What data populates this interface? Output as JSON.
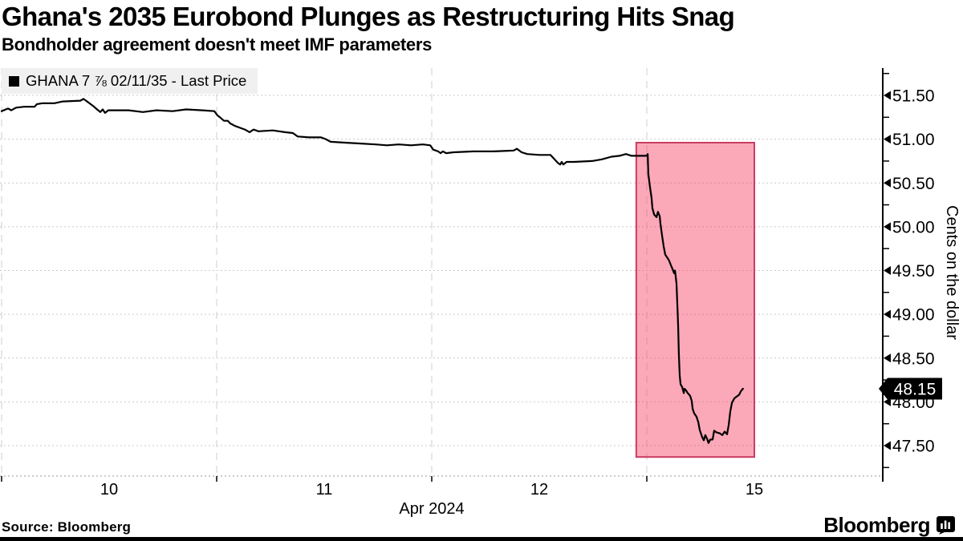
{
  "header": {
    "title": "Ghana's 2035 Eurobond Plunges as Restructuring Hits Snag",
    "subtitle": "Bondholder agreement doesn't meet IMF parameters"
  },
  "legend": {
    "label": "GHANA 7 ⅞ 02/11/35 - Last Price"
  },
  "footer": {
    "source": "Source: Bloomberg",
    "brand": "Bloomberg"
  },
  "colors": {
    "line": "#000000",
    "grid": "#c9c9c9",
    "highlight_fill": "#F64669",
    "highlight_stroke": "#C83D62",
    "legend_bg": "#f0f0f0",
    "badge_bg": "#000000",
    "badge_text": "#ffffff"
  },
  "chart_data": {
    "type": "line",
    "title": "Ghana's 2035 Eurobond Plunges as Restructuring Hits Snag",
    "subtitle": "Bondholder agreement doesn't meet IMF parameters",
    "xlabel": "Apr 2024",
    "ylabel": "Cents on the dollar",
    "ylim": [
      47.15,
      51.82
    ],
    "grid": true,
    "legend_position": "top-left",
    "y_ticks": [
      {
        "value": 51.5,
        "label": "51.50"
      },
      {
        "value": 51.0,
        "label": "51.00"
      },
      {
        "value": 50.5,
        "label": "50.50"
      },
      {
        "value": 50.0,
        "label": "50.00"
      },
      {
        "value": 49.5,
        "label": "49.50"
      },
      {
        "value": 49.0,
        "label": "49.00"
      },
      {
        "value": 48.5,
        "label": "48.50"
      },
      {
        "value": 48.0,
        "label": "48.00"
      },
      {
        "value": 47.5,
        "label": "47.50"
      }
    ],
    "y_minor_step": 0.25,
    "x_gridlines": [
      0,
      1,
      2,
      3
    ],
    "x_max_t": 4.112,
    "x_labels": [
      {
        "t": 0.5,
        "label": "10"
      },
      {
        "t": 1.5,
        "label": "11"
      },
      {
        "t": 2.5,
        "label": "12"
      },
      {
        "t": 3.5,
        "label": "15"
      }
    ],
    "last_price": {
      "value": 48.15,
      "label": "48.15"
    },
    "highlight_region": {
      "t0": 2.951,
      "t1": 3.5,
      "v_low": 47.37,
      "v_high": 50.96
    },
    "series": [
      {
        "name": "GHANA 7 ⅞ 02/11/35 - Last Price",
        "color": "#000000",
        "points": [
          [
            0.0,
            51.32
          ],
          [
            0.03,
            51.35
          ],
          [
            0.045,
            51.33
          ],
          [
            0.067,
            51.36
          ],
          [
            0.104,
            51.37
          ],
          [
            0.153,
            51.37
          ],
          [
            0.164,
            51.4
          ],
          [
            0.19,
            51.41
          ],
          [
            0.246,
            51.41
          ],
          [
            0.284,
            51.43
          ],
          [
            0.366,
            51.44
          ],
          [
            0.381,
            51.46
          ],
          [
            0.392,
            51.44
          ],
          [
            0.403,
            51.42
          ],
          [
            0.425,
            51.38
          ],
          [
            0.444,
            51.34
          ],
          [
            0.459,
            51.31
          ],
          [
            0.47,
            51.34
          ],
          [
            0.481,
            51.3
          ],
          [
            0.496,
            51.33
          ],
          [
            0.59,
            51.33
          ],
          [
            0.657,
            51.31
          ],
          [
            0.72,
            51.33
          ],
          [
            0.795,
            51.32
          ],
          [
            0.858,
            51.34
          ],
          [
            0.933,
            51.33
          ],
          [
            0.989,
            51.32
          ],
          [
            1.004,
            51.27
          ],
          [
            1.015,
            51.25
          ],
          [
            1.034,
            51.21
          ],
          [
            1.052,
            51.21
          ],
          [
            1.063,
            51.18
          ],
          [
            1.086,
            51.15
          ],
          [
            1.108,
            51.13
          ],
          [
            1.131,
            51.11
          ],
          [
            1.153,
            51.08
          ],
          [
            1.172,
            51.11
          ],
          [
            1.194,
            51.09
          ],
          [
            1.261,
            51.1
          ],
          [
            1.317,
            51.08
          ],
          [
            1.354,
            51.07
          ],
          [
            1.377,
            51.03
          ],
          [
            1.429,
            51.02
          ],
          [
            1.485,
            51.02
          ],
          [
            1.507,
            51.0
          ],
          [
            1.53,
            50.97
          ],
          [
            1.597,
            50.96
          ],
          [
            1.672,
            50.95
          ],
          [
            1.739,
            50.94
          ],
          [
            1.791,
            50.93
          ],
          [
            1.847,
            50.94
          ],
          [
            1.903,
            50.93
          ],
          [
            1.959,
            50.94
          ],
          [
            1.993,
            50.93
          ],
          [
            2.007,
            50.88
          ],
          [
            2.03,
            50.86
          ],
          [
            2.041,
            50.84
          ],
          [
            2.052,
            50.86
          ],
          [
            2.067,
            50.84
          ],
          [
            2.101,
            50.85
          ],
          [
            2.194,
            50.86
          ],
          [
            2.287,
            50.86
          ],
          [
            2.381,
            50.87
          ],
          [
            2.396,
            50.89
          ],
          [
            2.418,
            50.85
          ],
          [
            2.444,
            50.83
          ],
          [
            2.5,
            50.82
          ],
          [
            2.552,
            50.82
          ],
          [
            2.571,
            50.77
          ],
          [
            2.586,
            50.73
          ],
          [
            2.597,
            50.71
          ],
          [
            2.604,
            50.74
          ],
          [
            2.612,
            50.71
          ],
          [
            2.627,
            50.74
          ],
          [
            2.66,
            50.74
          ],
          [
            2.746,
            50.75
          ],
          [
            2.791,
            50.77
          ],
          [
            2.836,
            50.8
          ],
          [
            2.873,
            50.81
          ],
          [
            2.903,
            50.83
          ],
          [
            2.929,
            50.81
          ],
          [
            2.978,
            50.81
          ],
          [
            3.0,
            50.81
          ],
          [
            3.004,
            50.83
          ],
          [
            3.007,
            50.6
          ],
          [
            3.015,
            50.45
          ],
          [
            3.022,
            50.33
          ],
          [
            3.026,
            50.21
          ],
          [
            3.034,
            50.14
          ],
          [
            3.045,
            50.11
          ],
          [
            3.052,
            50.17
          ],
          [
            3.06,
            50.12
          ],
          [
            3.063,
            50.04
          ],
          [
            3.071,
            49.9
          ],
          [
            3.078,
            49.78
          ],
          [
            3.086,
            49.68
          ],
          [
            3.097,
            49.64
          ],
          [
            3.104,
            49.61
          ],
          [
            3.112,
            49.56
          ],
          [
            3.119,
            49.52
          ],
          [
            3.127,
            49.47
          ],
          [
            3.131,
            49.5
          ],
          [
            3.134,
            49.44
          ],
          [
            3.138,
            49.35
          ],
          [
            3.142,
            49.1
          ],
          [
            3.146,
            48.85
          ],
          [
            3.149,
            48.55
          ],
          [
            3.153,
            48.3
          ],
          [
            3.157,
            48.2
          ],
          [
            3.164,
            48.17
          ],
          [
            3.172,
            48.1
          ],
          [
            3.175,
            48.15
          ],
          [
            3.183,
            48.13
          ],
          [
            3.19,
            48.1
          ],
          [
            3.201,
            48.07
          ],
          [
            3.209,
            48.01
          ],
          [
            3.213,
            47.92
          ],
          [
            3.22,
            47.87
          ],
          [
            3.231,
            47.83
          ],
          [
            3.239,
            47.77
          ],
          [
            3.246,
            47.68
          ],
          [
            3.257,
            47.6
          ],
          [
            3.265,
            47.56
          ],
          [
            3.272,
            47.62
          ],
          [
            3.28,
            47.58
          ],
          [
            3.287,
            47.53
          ],
          [
            3.295,
            47.57
          ],
          [
            3.306,
            47.57
          ],
          [
            3.313,
            47.67
          ],
          [
            3.325,
            47.65
          ],
          [
            3.34,
            47.64
          ],
          [
            3.351,
            47.62
          ],
          [
            3.362,
            47.66
          ],
          [
            3.373,
            47.63
          ],
          [
            3.381,
            47.74
          ],
          [
            3.388,
            47.89
          ],
          [
            3.396,
            47.99
          ],
          [
            3.407,
            48.04
          ],
          [
            3.418,
            48.06
          ],
          [
            3.429,
            48.08
          ],
          [
            3.437,
            48.12
          ],
          [
            3.447,
            48.15
          ]
        ]
      }
    ]
  }
}
